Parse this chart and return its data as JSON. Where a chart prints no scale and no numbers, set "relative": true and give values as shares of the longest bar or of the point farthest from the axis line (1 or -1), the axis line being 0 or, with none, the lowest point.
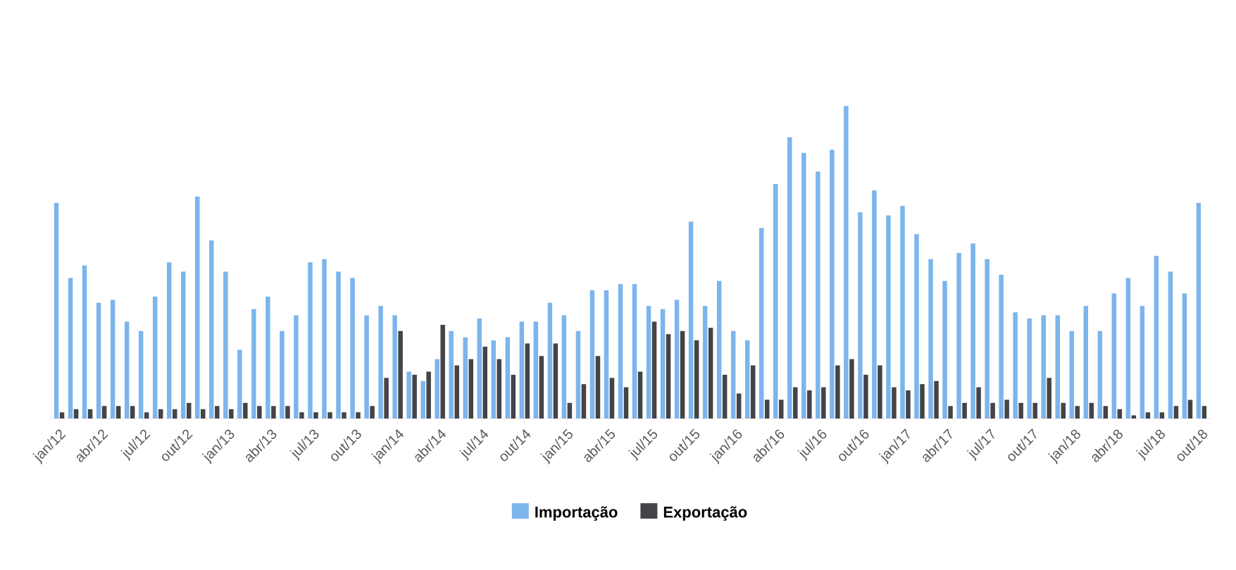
{
  "chart_data": {
    "type": "bar",
    "relative": true,
    "legend": "bottom",
    "categories": [
      "jan/12",
      null,
      null,
      "abr/12",
      null,
      null,
      "jul/12",
      null,
      null,
      "out/12",
      null,
      null,
      "jan/13",
      null,
      null,
      "abr/13",
      null,
      null,
      "jul/13",
      null,
      null,
      "out/13",
      null,
      null,
      "jan/14",
      null,
      null,
      "abr/14",
      null,
      null,
      "jul/14",
      null,
      null,
      "out/14",
      null,
      null,
      "jan/15",
      null,
      null,
      "abr/15",
      null,
      null,
      "jul/15",
      null,
      null,
      "out/15",
      null,
      null,
      "jan/16",
      null,
      null,
      "abr/16",
      null,
      null,
      "jul/16",
      null,
      null,
      "out/16",
      null,
      null,
      "jan/17",
      null,
      null,
      "abr/17",
      null,
      null,
      "jul/17",
      null,
      null,
      "out/17",
      null,
      null,
      "jan/18",
      null,
      null,
      "abr/18",
      null,
      null,
      "jul/18",
      null,
      null,
      "out/18"
    ],
    "series": [
      {
        "name": "Importação",
        "color": "#7cb5ec",
        "values": [
          0.69,
          0.45,
          0.49,
          0.37,
          0.38,
          0.31,
          0.28,
          0.39,
          0.5,
          0.47,
          0.71,
          0.57,
          0.47,
          0.22,
          0.35,
          0.39,
          0.28,
          0.33,
          0.5,
          0.51,
          0.47,
          0.45,
          0.33,
          0.36,
          0.33,
          0.15,
          0.12,
          0.19,
          0.28,
          0.26,
          0.32,
          0.25,
          0.26,
          0.31,
          0.31,
          0.37,
          0.33,
          0.28,
          0.41,
          0.41,
          0.43,
          0.43,
          0.36,
          0.35,
          0.38,
          0.63,
          0.36,
          0.44,
          0.28,
          0.25,
          0.61,
          0.75,
          0.9,
          0.85,
          0.79,
          0.86,
          1,
          0.66,
          0.73,
          0.65,
          0.68,
          0.59,
          0.51,
          0.44,
          0.53,
          0.56,
          0.51,
          0.46,
          0.34,
          0.32,
          0.33,
          0.33,
          0.28,
          0.36,
          0.28,
          0.4,
          0.45,
          0.36,
          0.52,
          0.47,
          0.4,
          0.69
        ]
      },
      {
        "name": "Exportação",
        "color": "#434348",
        "values": [
          0.02,
          0.03,
          0.03,
          0.04,
          0.04,
          0.04,
          0.02,
          0.03,
          0.03,
          0.05,
          0.03,
          0.04,
          0.03,
          0.05,
          0.04,
          0.04,
          0.04,
          0.02,
          0.02,
          0.02,
          0.02,
          0.02,
          0.04,
          0.13,
          0.28,
          0.14,
          0.15,
          0.3,
          0.17,
          0.19,
          0.23,
          0.19,
          0.14,
          0.24,
          0.2,
          0.24,
          0.05,
          0.11,
          0.2,
          0.13,
          0.1,
          0.15,
          0.31,
          0.27,
          0.28,
          0.25,
          0.29,
          0.14,
          0.08,
          0.17,
          0.06,
          0.06,
          0.1,
          0.09,
          0.1,
          0.17,
          0.19,
          0.14,
          0.17,
          0.1,
          0.09,
          0.11,
          0.12,
          0.04,
          0.05,
          0.1,
          0.05,
          0.06,
          0.05,
          0.05,
          0.13,
          0.05,
          0.04,
          0.05,
          0.04,
          0.03,
          0.01,
          0.02,
          0.02,
          0.04,
          0.06,
          0.04
        ]
      }
    ]
  }
}
